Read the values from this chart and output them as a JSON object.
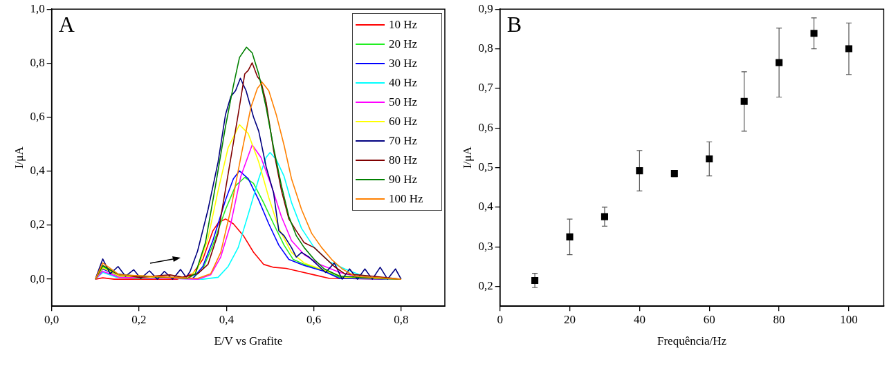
{
  "chart_data": [
    {
      "type": "line",
      "xlabel": "E/V vs Grafite",
      "ylabel": "I/μA",
      "annotations": [
        "A"
      ],
      "xlim": [
        0,
        0.9
      ],
      "ylim": [
        -0.1,
        1.0
      ],
      "xticks": [
        {
          "value": 0,
          "label": "0,0"
        },
        {
          "value": 0.2,
          "label": "0,2"
        },
        {
          "value": 0.4,
          "label": "0,4"
        },
        {
          "value": 0.6,
          "label": "0,6"
        },
        {
          "value": 0.8,
          "label": "0,8"
        }
      ],
      "yticks": [
        {
          "value": 0,
          "label": "0,0"
        },
        {
          "value": 0.2,
          "label": "0,2"
        },
        {
          "value": 0.4,
          "label": "0,4"
        },
        {
          "value": 0.6,
          "label": "0,6"
        },
        {
          "value": 0.8,
          "label": "0,8"
        },
        {
          "value": 1.0,
          "label": "1,0"
        }
      ],
      "grid": false,
      "legend": "top right",
      "marker": "none",
      "line_style": "solid",
      "series": [
        {
          "name": "10 Hz",
          "color": "#ff0000",
          "x": [
            0.1,
            0.117,
            0.143,
            0.288,
            0.323,
            0.346,
            0.369,
            0.382,
            0.398,
            0.416,
            0.439,
            0.462,
            0.485,
            0.508,
            0.537,
            0.566,
            0.601,
            0.636,
            0.8
          ],
          "values": [
            0,
            0.005,
            0,
            0,
            0.02,
            0.073,
            0.179,
            0.21,
            0.223,
            0.205,
            0.161,
            0.1,
            0.055,
            0.044,
            0.04,
            0.029,
            0.016,
            0.003,
            0
          ]
        },
        {
          "name": "20 Hz",
          "color": "#22ee22",
          "x": [
            0.1,
            0.117,
            0.149,
            0.19,
            0.323,
            0.346,
            0.369,
            0.398,
            0.421,
            0.442,
            0.462,
            0.485,
            0.508,
            0.532,
            0.553,
            0.578,
            0.613,
            0.659,
            0.8
          ],
          "values": [
            0,
            0.047,
            0.016,
            0.003,
            0.003,
            0.038,
            0.126,
            0.258,
            0.346,
            0.377,
            0.355,
            0.284,
            0.205,
            0.126,
            0.073,
            0.055,
            0.038,
            0.007,
            0
          ]
        },
        {
          "name": "30 Hz",
          "color": "#0000ff",
          "x": [
            0.1,
            0.117,
            0.155,
            0.323,
            0.346,
            0.369,
            0.398,
            0.416,
            0.43,
            0.45,
            0.474,
            0.497,
            0.52,
            0.543,
            0.578,
            0.624,
            0.659,
            0.8
          ],
          "values": [
            0,
            0.038,
            0.011,
            0.003,
            0.047,
            0.143,
            0.293,
            0.372,
            0.401,
            0.372,
            0.293,
            0.205,
            0.126,
            0.073,
            0.051,
            0.029,
            0.003,
            0
          ]
        },
        {
          "name": "40 Hz",
          "color": "#00ffff",
          "x": [
            0.1,
            0.117,
            0.149,
            0.346,
            0.381,
            0.404,
            0.427,
            0.45,
            0.474,
            0.491,
            0.5,
            0.514,
            0.532,
            0.549,
            0.572,
            0.601,
            0.636,
            0.671,
            0.706,
            0.74,
            0.8
          ],
          "values": [
            0,
            0.025,
            0.007,
            0,
            0.007,
            0.047,
            0.117,
            0.24,
            0.372,
            0.451,
            0.469,
            0.443,
            0.381,
            0.284,
            0.188,
            0.117,
            0.064,
            0.038,
            0.016,
            0.003,
            0
          ]
        },
        {
          "name": "50 Hz",
          "color": "#ff00ff",
          "x": [
            0.1,
            0.117,
            0.155,
            0.336,
            0.364,
            0.387,
            0.41,
            0.433,
            0.459,
            0.479,
            0.503,
            0.526,
            0.549,
            0.578,
            0.613,
            0.659,
            0.706,
            0.8
          ],
          "values": [
            0,
            0.029,
            0.007,
            0,
            0.016,
            0.082,
            0.205,
            0.381,
            0.497,
            0.451,
            0.346,
            0.231,
            0.143,
            0.091,
            0.055,
            0.025,
            0.007,
            0
          ]
        },
        {
          "name": "60 Hz",
          "color": "#ffff00",
          "x": [
            0.1,
            0.117,
            0.155,
            0.311,
            0.334,
            0.358,
            0.381,
            0.404,
            0.43,
            0.45,
            0.474,
            0.497,
            0.52,
            0.549,
            0.578,
            0.624,
            0.67,
            0.8
          ],
          "values": [
            0,
            0.042,
            0.011,
            0.003,
            0.038,
            0.152,
            0.328,
            0.487,
            0.572,
            0.539,
            0.434,
            0.302,
            0.188,
            0.099,
            0.06,
            0.033,
            0.007,
            0
          ]
        },
        {
          "name": "70 Hz",
          "color": "#000080",
          "x": [
            0.1,
            0.117,
            0.134,
            0.152,
            0.169,
            0.188,
            0.204,
            0.224,
            0.242,
            0.258,
            0.277,
            0.295,
            0.308,
            0.317,
            0.334,
            0.358,
            0.381,
            0.398,
            0.41,
            0.421,
            0.432,
            0.445,
            0.462,
            0.474,
            0.491,
            0.508,
            0.52,
            0.532,
            0.549,
            0.56,
            0.572,
            0.589,
            0.607,
            0.627,
            0.647,
            0.665,
            0.682,
            0.7,
            0.717,
            0.734,
            0.752,
            0.769,
            0.787,
            0.8
          ],
          "values": [
            0,
            0.075,
            0.02,
            0.047,
            0.011,
            0.035,
            0.003,
            0.031,
            0,
            0.029,
            0,
            0.036,
            0.007,
            0.029,
            0.104,
            0.258,
            0.434,
            0.61,
            0.676,
            0.698,
            0.744,
            0.698,
            0.601,
            0.548,
            0.416,
            0.32,
            0.179,
            0.161,
            0.117,
            0.082,
            0.099,
            0.082,
            0.055,
            0.025,
            0.06,
            0,
            0.038,
            0,
            0.038,
            0,
            0.044,
            0,
            0.038,
            0
          ]
        },
        {
          "name": "80 Hz",
          "color": "#800000",
          "x": [
            0.1,
            0.117,
            0.149,
            0.2,
            0.271,
            0.3,
            0.334,
            0.358,
            0.381,
            0.404,
            0.427,
            0.442,
            0.45,
            0.459,
            0.471,
            0.479,
            0.491,
            0.508,
            0.526,
            0.543,
            0.56,
            0.578,
            0.601,
            0.624,
            0.647,
            0.671,
            0.7,
            0.734,
            0.8
          ],
          "values": [
            0,
            0.051,
            0.02,
            0.007,
            0.016,
            0.007,
            0.02,
            0.055,
            0.17,
            0.39,
            0.61,
            0.76,
            0.773,
            0.801,
            0.75,
            0.733,
            0.654,
            0.478,
            0.328,
            0.223,
            0.179,
            0.135,
            0.117,
            0.082,
            0.047,
            0.02,
            0.016,
            0.011,
            0
          ]
        },
        {
          "name": "90 Hz",
          "color": "#008000",
          "x": [
            0.1,
            0.117,
            0.155,
            0.311,
            0.329,
            0.352,
            0.375,
            0.398,
            0.416,
            0.43,
            0.446,
            0.459,
            0.474,
            0.491,
            0.508,
            0.526,
            0.543,
            0.56,
            0.578,
            0.601,
            0.624,
            0.659,
            0.8
          ],
          "values": [
            0,
            0.05,
            0.016,
            0.003,
            0.02,
            0.135,
            0.346,
            0.566,
            0.716,
            0.821,
            0.859,
            0.838,
            0.76,
            0.636,
            0.487,
            0.346,
            0.232,
            0.161,
            0.117,
            0.073,
            0.038,
            0.011,
            0
          ]
        },
        {
          "name": "100 Hz",
          "color": "#ff8000",
          "x": [
            0.1,
            0.117,
            0.155,
            0.334,
            0.364,
            0.387,
            0.41,
            0.433,
            0.456,
            0.471,
            0.482,
            0.497,
            0.514,
            0.532,
            0.549,
            0.572,
            0.595,
            0.618,
            0.641,
            0.665,
            0.694,
            0.8
          ],
          "values": [
            0,
            0.06,
            0.016,
            0.003,
            0.02,
            0.099,
            0.258,
            0.452,
            0.636,
            0.707,
            0.729,
            0.698,
            0.61,
            0.496,
            0.372,
            0.258,
            0.17,
            0.117,
            0.073,
            0.038,
            0.011,
            0
          ]
        }
      ]
    },
    {
      "type": "scatter",
      "xlabel": "Frequência/Hz",
      "ylabel": "I/μA",
      "annotations": [
        "B"
      ],
      "xlim": [
        0,
        110
      ],
      "ylim": [
        0.15,
        0.9
      ],
      "xticks": [
        0,
        20,
        40,
        60,
        80,
        100
      ],
      "yticks": [
        {
          "value": 0.2,
          "label": "0,2"
        },
        {
          "value": 0.3,
          "label": "0,3"
        },
        {
          "value": 0.4,
          "label": "0,4"
        },
        {
          "value": 0.5,
          "label": "0,5"
        },
        {
          "value": 0.6,
          "label": "0,6"
        },
        {
          "value": 0.7,
          "label": "0,7"
        },
        {
          "value": 0.8,
          "label": "0,8"
        },
        {
          "value": 0.9,
          "label": "0,9"
        }
      ],
      "grid": false,
      "legend": false,
      "marker": "square",
      "color": "#000000",
      "x": [
        10,
        20,
        30,
        40,
        50,
        60,
        70,
        80,
        90,
        100
      ],
      "values": [
        0.215,
        0.325,
        0.376,
        0.492,
        0.485,
        0.522,
        0.667,
        0.765,
        0.839,
        0.8
      ],
      "errors": [
        0.018,
        0.045,
        0.024,
        0.051,
        0.008,
        0.043,
        0.075,
        0.087,
        0.039,
        0.065
      ]
    }
  ]
}
